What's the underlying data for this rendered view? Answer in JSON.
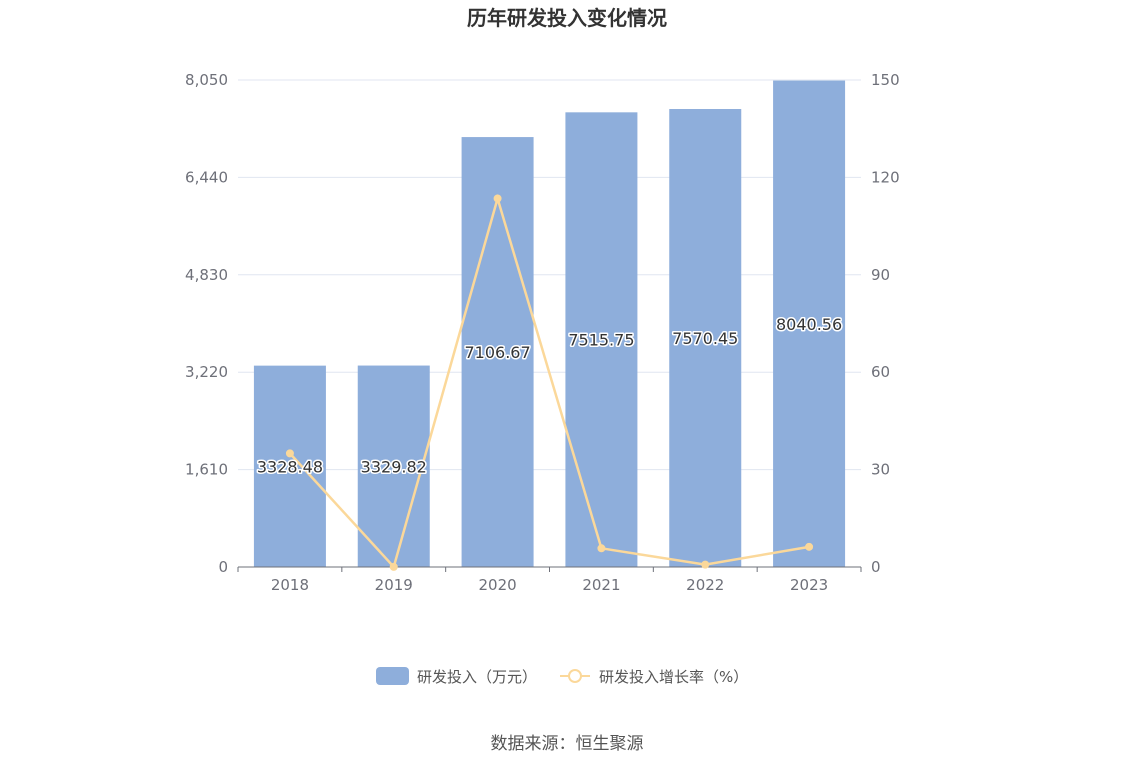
{
  "chart_data": {
    "type": "bar",
    "title": "历年研发投入变化情况",
    "categories": [
      "2018",
      "2019",
      "2020",
      "2021",
      "2022",
      "2023"
    ],
    "series": [
      {
        "name": "研发投入（万元）",
        "type": "bar",
        "axis": "left",
        "color": "#8eaedb",
        "values": [
          3328.48,
          3329.82,
          7106.67,
          7515.75,
          7570.45,
          8040.56
        ],
        "data_labels": [
          "3328.48",
          "3329.82",
          "7106.67",
          "7515.75",
          "7570.45",
          "8040.56"
        ]
      },
      {
        "name": "研发投入增长率（%）",
        "type": "line",
        "axis": "right",
        "color": "#fbd89a",
        "values": [
          35.0,
          0.04,
          113.5,
          5.76,
          0.73,
          6.21
        ]
      }
    ],
    "y_left": {
      "ylim": [
        0,
        8050
      ],
      "ticks": [
        0,
        1610,
        3220,
        4830,
        6440,
        8050
      ],
      "tick_labels": [
        "0",
        "1,610",
        "3,220",
        "4,830",
        "6,440",
        "8,050"
      ]
    },
    "y_right": {
      "ylim": [
        0,
        150
      ],
      "ticks": [
        0,
        30,
        60,
        90,
        120,
        150
      ],
      "tick_labels": [
        "0",
        "30",
        "60",
        "90",
        "120",
        "150"
      ]
    },
    "grid": true,
    "legend_position": "bottom-center"
  },
  "source": "数据来源：恒生聚源"
}
